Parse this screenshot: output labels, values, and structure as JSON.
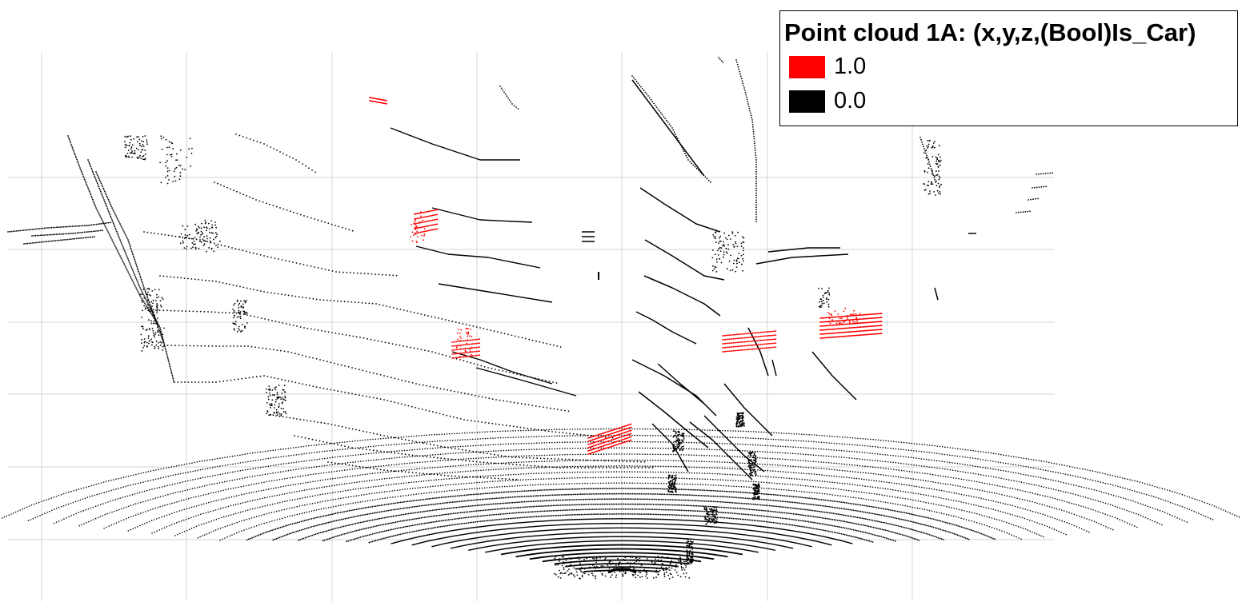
{
  "legend": {
    "title": "Point cloud 1A: (x,y,z,(Bool)Is_Car)",
    "items": [
      {
        "label": "1.0",
        "color": "#ff0000"
      },
      {
        "label": "0.0",
        "color": "#000000"
      }
    ]
  },
  "colors": {
    "car_points": "#ff0000",
    "other_points": "#000000",
    "grid": "#d6d6d6",
    "background": "#ffffff"
  },
  "grid": true
}
